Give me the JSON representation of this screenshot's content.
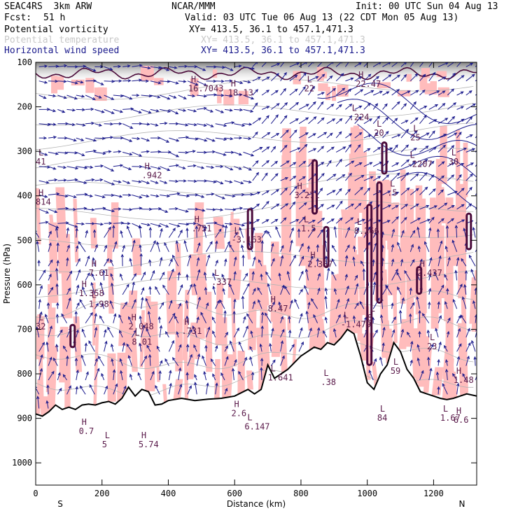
{
  "header": {
    "model": "SEAC4RS  3km ARW",
    "org": "NCAR/MMM",
    "init": "Init: 00 UTC Sun 04 Aug 13",
    "fcst_label": "Fcst:",
    "fcst_value": "51 h",
    "valid": "Valid: 03 UTC Tue 06 Aug 13 (22 CDT Mon 05 Aug 13)"
  },
  "fields": [
    {
      "name": "Potential vorticity",
      "xy": "XY= 413.5, 36.1 to 457.1,471.3",
      "color": "#000000"
    },
    {
      "name": "Potential temperature",
      "xy": "XY= 413.5, 36.1 to 457.1,471.3",
      "color": "#c8c8c8"
    },
    {
      "name": "Horizontal wind speed",
      "xy": "XY= 413.5, 36.1 to 457.1,471.3",
      "color": "#1a1a8c"
    }
  ],
  "colors": {
    "pv_shade": "#ffbcbc",
    "pv_strong": "#4a0a3a",
    "theta": "#b4b4b4",
    "wind": "#1a1a8c",
    "wind_contour": "#1a1a8c",
    "terrain": "#000000",
    "label": "#5a1a4a"
  },
  "chart_data": {
    "type": "cross-section",
    "xlabel": "Distance (km)",
    "ylabel": "Pressure (hPa)",
    "xlim": [
      0,
      1330
    ],
    "ylim": [
      1050,
      100
    ],
    "x_ticks": [
      0,
      200,
      400,
      600,
      800,
      1000,
      1200
    ],
    "y_ticks": [
      100,
      200,
      300,
      400,
      500,
      600,
      700,
      800,
      900,
      1000
    ],
    "direction_left": "S",
    "direction_right": "N",
    "terrain": {
      "x": [
        0,
        20,
        40,
        60,
        80,
        100,
        120,
        140,
        160,
        180,
        200,
        220,
        240,
        260,
        280,
        300,
        320,
        340,
        360,
        380,
        400,
        440,
        480,
        520,
        560,
        600,
        640,
        660,
        680,
        700,
        720,
        760,
        800,
        840,
        860,
        880,
        900,
        920,
        940,
        960,
        980,
        1000,
        1020,
        1040,
        1060,
        1080,
        1100,
        1120,
        1140,
        1160,
        1180,
        1200,
        1220,
        1240,
        1260,
        1280,
        1300,
        1330
      ],
      "p": [
        890,
        895,
        885,
        870,
        880,
        875,
        880,
        870,
        868,
        870,
        865,
        862,
        868,
        855,
        830,
        850,
        835,
        840,
        870,
        868,
        860,
        855,
        860,
        857,
        855,
        850,
        835,
        845,
        835,
        780,
        810,
        790,
        760,
        740,
        745,
        730,
        735,
        720,
        700,
        710,
        760,
        820,
        835,
        800,
        780,
        730,
        750,
        790,
        810,
        840,
        845,
        850,
        855,
        858,
        855,
        850,
        845,
        850
      ]
    },
    "labels": [
      {
        "kind": "H",
        "x": 460,
        "p": 165,
        "value": "16.7043"
      },
      {
        "kind": "H",
        "x": 580,
        "p": 175,
        "value": "18.13"
      },
      {
        "kind": "L",
        "x": 810,
        "p": 165,
        "value": "22"
      },
      {
        "kind": "H",
        "x": 965,
        "p": 155,
        "value": "22.47"
      },
      {
        "kind": "L",
        "x": 945,
        "p": 230,
        "value": ".224"
      },
      {
        "kind": "L",
        "x": 1020,
        "p": 265,
        "value": "20"
      },
      {
        "kind": "L",
        "x": 1130,
        "p": 275,
        "value": "25"
      },
      {
        "kind": "L",
        "x": 1120,
        "p": 335,
        "value": "-2207"
      },
      {
        "kind": "L",
        "x": 1245,
        "p": 330,
        "value": "30"
      },
      {
        "kind": "H",
        "x": 320,
        "p": 360,
        "value": ".942"
      },
      {
        "kind": "L",
        "x": 0,
        "p": 330,
        "value": "41"
      },
      {
        "kind": "H",
        "x": 0,
        "p": 420,
        "value": "814"
      },
      {
        "kind": "H",
        "x": 780,
        "p": 405,
        "value": "3.271"
      },
      {
        "kind": "L",
        "x": 1060,
        "p": 400,
        "value": ".5"
      },
      {
        "kind": "H",
        "x": 470,
        "p": 480,
        "value": ".751"
      },
      {
        "kind": "L",
        "x": 590,
        "p": 505,
        "value": "-3.163"
      },
      {
        "kind": "L",
        "x": 800,
        "p": 480,
        "value": "1.5"
      },
      {
        "kind": "L",
        "x": 960,
        "p": 485,
        "value": "8.266"
      },
      {
        "kind": "H",
        "x": 820,
        "p": 560,
        "value": "2.357"
      },
      {
        "kind": "H",
        "x": 1150,
        "p": 580,
        "value": "2.437"
      },
      {
        "kind": "H",
        "x": 160,
        "p": 580,
        "value": "7.61"
      },
      {
        "kind": "L",
        "x": 530,
        "p": 600,
        "value": ".337"
      },
      {
        "kind": "H",
        "x": 130,
        "p": 625,
        "value": "1.358"
      },
      {
        "kind": "L",
        "x": 160,
        "p": 650,
        "value": "1.98"
      },
      {
        "kind": "H",
        "x": 700,
        "p": 660,
        "value": "8.47"
      },
      {
        "kind": "L",
        "x": 920,
        "p": 695,
        "value": "-1.479"
      },
      {
        "kind": "L",
        "x": 1000,
        "p": 680,
        "value": "8"
      },
      {
        "kind": "H",
        "x": 280,
        "p": 700,
        "value": "2.048"
      },
      {
        "kind": "H",
        "x": 440,
        "p": 710,
        "value": ".731"
      },
      {
        "kind": "L",
        "x": 290,
        "p": 735,
        "value": "8.01"
      },
      {
        "kind": "L",
        "x": 0,
        "p": 700,
        "value": "32"
      },
      {
        "kind": "L",
        "x": 1180,
        "p": 745,
        "value": "23"
      },
      {
        "kind": "L",
        "x": 700,
        "p": 815,
        "value": "1.641"
      },
      {
        "kind": "L",
        "x": 860,
        "p": 825,
        "value": ".38"
      },
      {
        "kind": "L",
        "x": 1070,
        "p": 800,
        "value": "59"
      },
      {
        "kind": "H",
        "x": 1260,
        "p": 820,
        "value": "1.48"
      },
      {
        "kind": "H",
        "x": 590,
        "p": 895,
        "value": "2.6"
      },
      {
        "kind": "L",
        "x": 630,
        "p": 925,
        "value": "6.147"
      },
      {
        "kind": "L",
        "x": 1030,
        "p": 905,
        "value": "84"
      },
      {
        "kind": "L",
        "x": 1220,
        "p": 905,
        "value": "1.67"
      },
      {
        "kind": "H",
        "x": 1260,
        "p": 910,
        "value": "6.6"
      },
      {
        "kind": "H",
        "x": 130,
        "p": 935,
        "value": "0.7"
      },
      {
        "kind": "L",
        "x": 200,
        "p": 965,
        "value": "5"
      },
      {
        "kind": "H",
        "x": 310,
        "p": 965,
        "value": "5.74"
      }
    ]
  }
}
